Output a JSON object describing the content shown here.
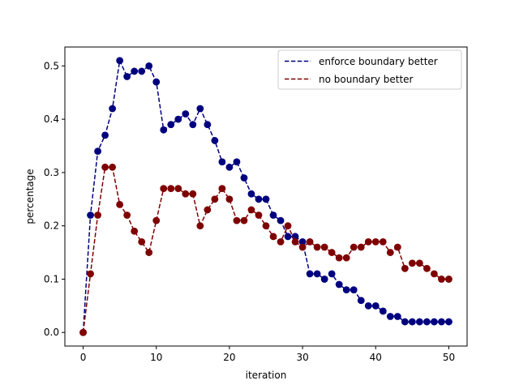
{
  "chart_data": {
    "type": "line",
    "title": "",
    "xlabel": "iteration",
    "ylabel": "percentage",
    "xlim": [
      -2.5,
      52.5
    ],
    "ylim": [
      -0.0255,
      0.5355
    ],
    "xticks": [
      0,
      10,
      20,
      30,
      40,
      50
    ],
    "xtick_labels": [
      "0",
      "10",
      "20",
      "30",
      "40",
      "50"
    ],
    "yticks": [
      0.0,
      0.1,
      0.2,
      0.3,
      0.4,
      0.5
    ],
    "ytick_labels": [
      "0.0",
      "0.1",
      "0.2",
      "0.3",
      "0.4",
      "0.5"
    ],
    "grid": false,
    "legend_position": "top-right",
    "x": [
      0,
      1,
      2,
      3,
      4,
      5,
      6,
      7,
      8,
      9,
      10,
      11,
      12,
      13,
      14,
      15,
      16,
      17,
      18,
      19,
      20,
      21,
      22,
      23,
      24,
      25,
      26,
      27,
      28,
      29,
      30,
      31,
      32,
      33,
      34,
      35,
      36,
      37,
      38,
      39,
      40,
      41,
      42,
      43,
      44,
      45,
      46,
      47,
      48,
      49,
      50
    ],
    "series": [
      {
        "name": "enforce boundary better",
        "color": "#00007f",
        "linestyle": "dashed",
        "marker": "circle",
        "values": [
          0.0,
          0.22,
          0.34,
          0.37,
          0.42,
          0.51,
          0.48,
          0.49,
          0.49,
          0.5,
          0.47,
          0.38,
          0.39,
          0.4,
          0.41,
          0.39,
          0.42,
          0.39,
          0.36,
          0.32,
          0.31,
          0.32,
          0.29,
          0.26,
          0.25,
          0.25,
          0.22,
          0.21,
          0.18,
          0.18,
          0.17,
          0.11,
          0.11,
          0.1,
          0.11,
          0.09,
          0.08,
          0.08,
          0.06,
          0.05,
          0.05,
          0.04,
          0.03,
          0.03,
          0.02,
          0.02,
          0.02,
          0.02,
          0.02,
          0.02,
          0.02
        ]
      },
      {
        "name": "no boundary better",
        "color": "#7f0000",
        "linestyle": "dashed",
        "marker": "circle",
        "values": [
          0.0,
          0.11,
          0.22,
          0.31,
          0.31,
          0.24,
          0.22,
          0.19,
          0.17,
          0.15,
          0.21,
          0.27,
          0.27,
          0.27,
          0.26,
          0.26,
          0.2,
          0.23,
          0.25,
          0.27,
          0.25,
          0.21,
          0.21,
          0.23,
          0.22,
          0.2,
          0.18,
          0.17,
          0.2,
          0.17,
          0.16,
          0.17,
          0.16,
          0.16,
          0.15,
          0.14,
          0.14,
          0.16,
          0.16,
          0.17,
          0.17,
          0.17,
          0.15,
          0.16,
          0.12,
          0.13,
          0.13,
          0.12,
          0.11,
          0.1,
          0.1
        ]
      }
    ]
  }
}
